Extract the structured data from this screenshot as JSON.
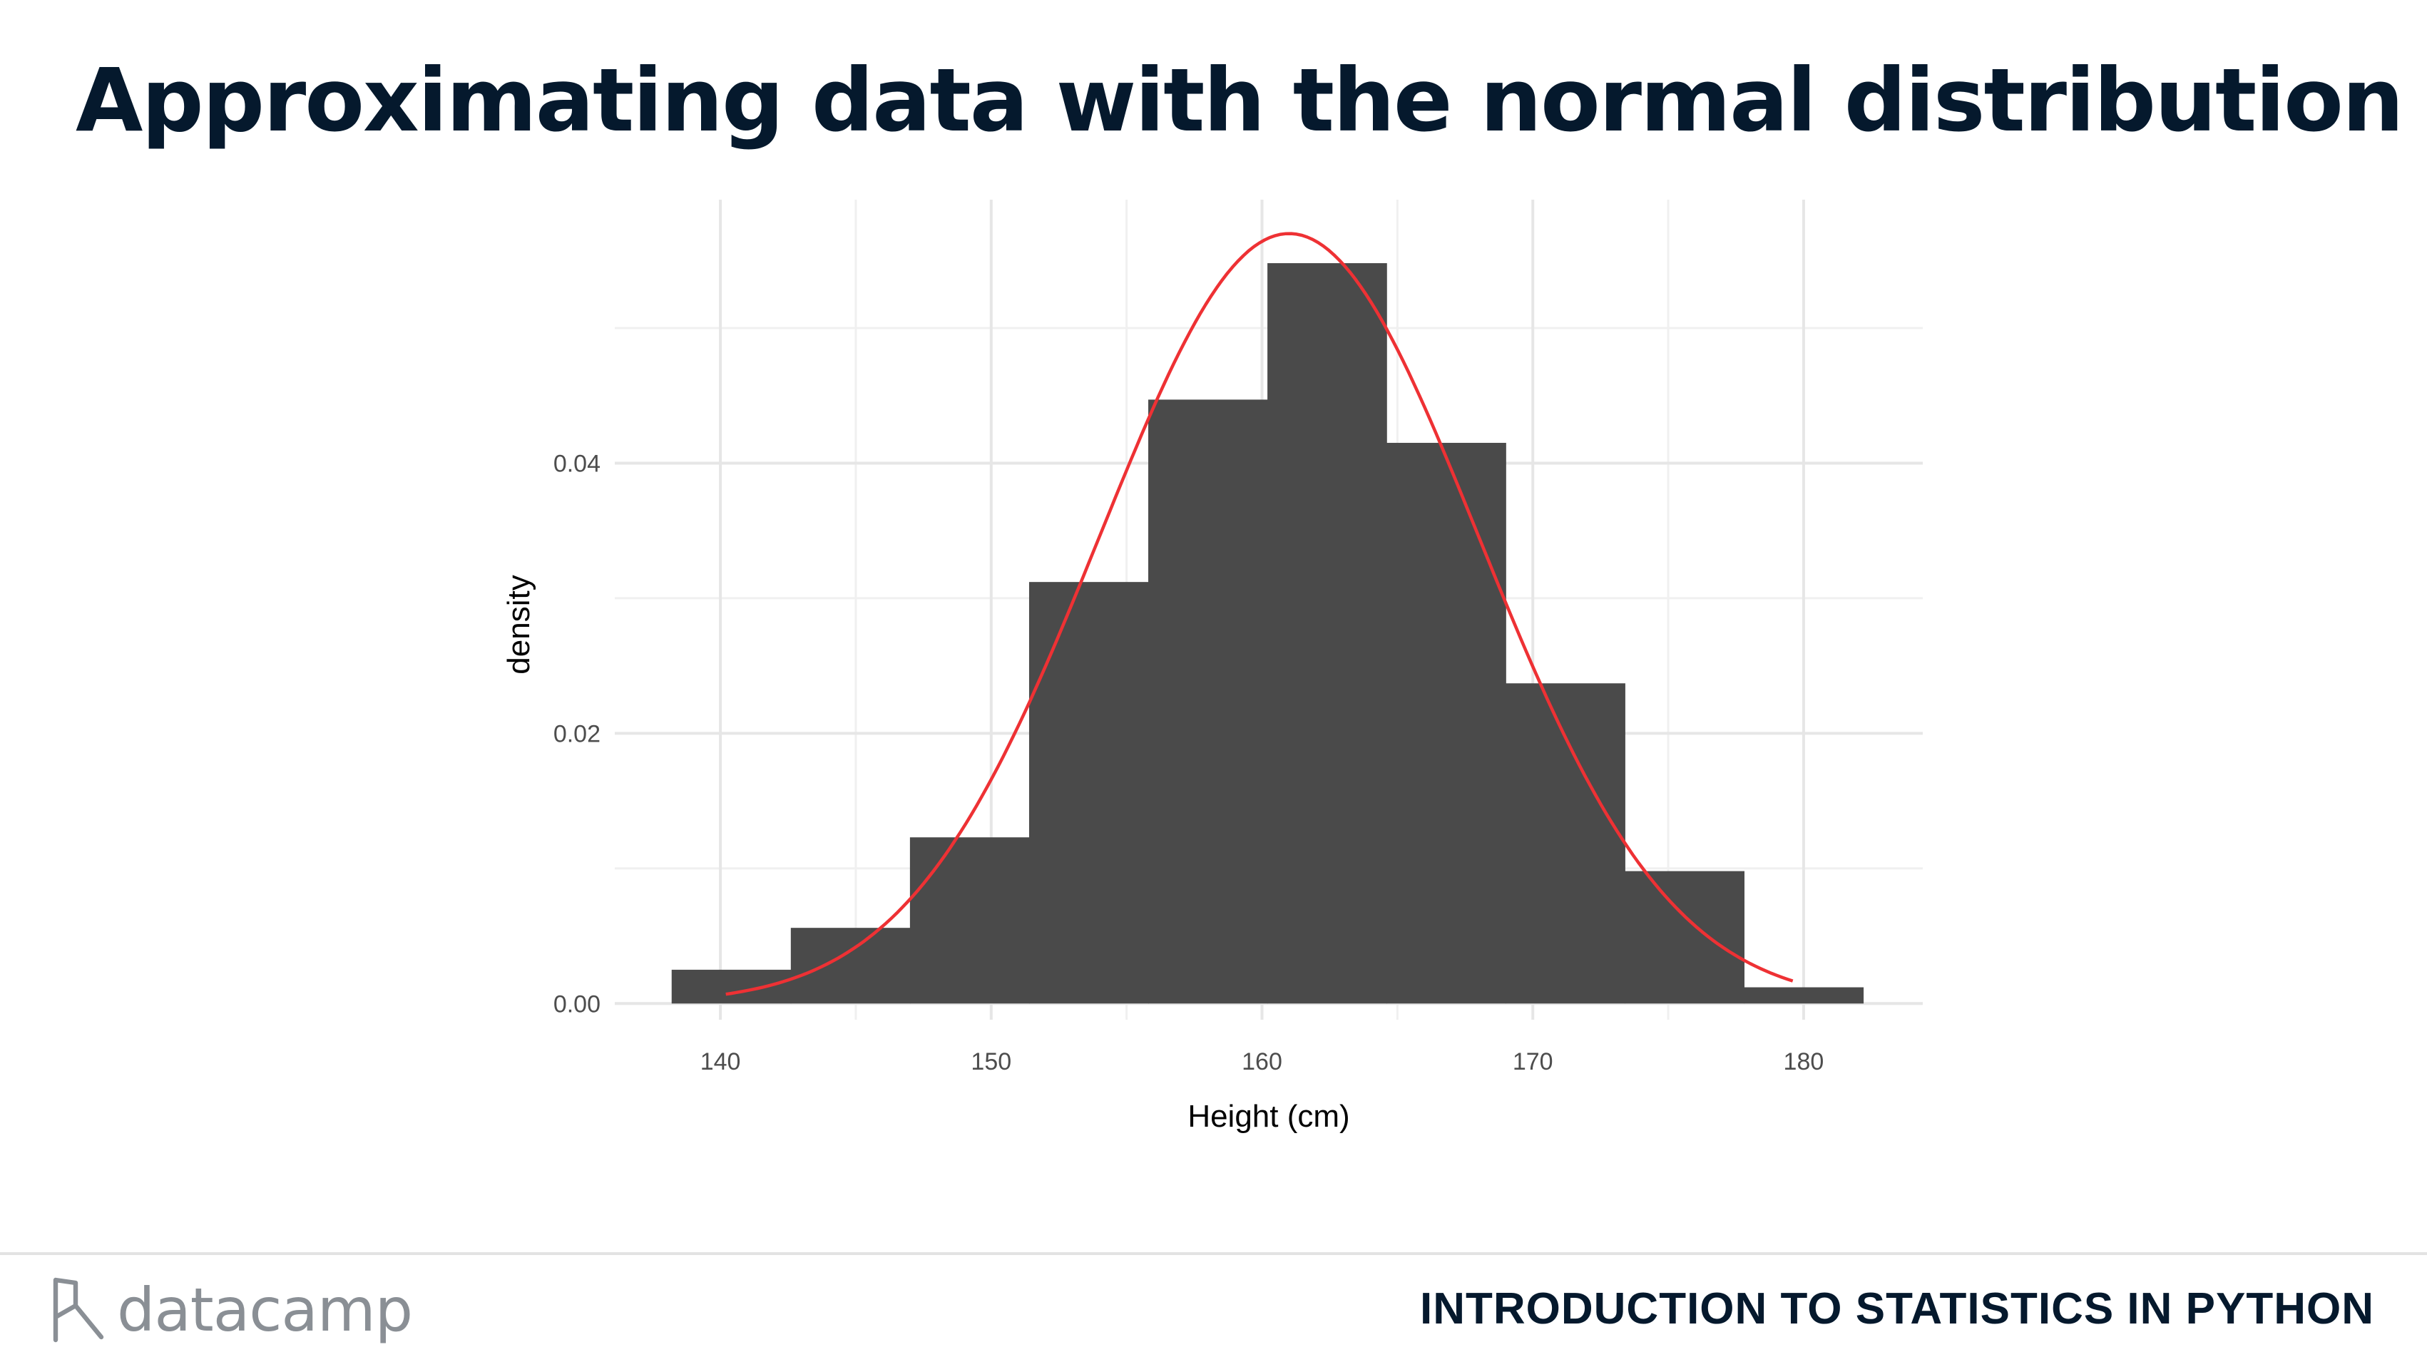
{
  "slide": {
    "title": "Approximating data with the normal distribution"
  },
  "footer": {
    "logo_text": "datacamp",
    "logo_icon": "datacamp-logo-icon",
    "course_title": "INTRODUCTION TO STATISTICS IN PYTHON"
  },
  "chart_data": {
    "type": "bar",
    "subtype": "histogram-with-density-curve",
    "xlabel": "Height (cm)",
    "ylabel": "density",
    "xlim": [
      136.1,
      184.4
    ],
    "ylim": [
      -0.0012,
      0.0595
    ],
    "x_ticks": [
      140,
      150,
      160,
      170,
      180
    ],
    "x_tick_labels": [
      "140",
      "150",
      "160",
      "170",
      "180"
    ],
    "y_ticks": [
      0,
      0.02,
      0.04
    ],
    "y_tick_labels": [
      "0.00",
      "0.02",
      "0.04"
    ],
    "grid": true,
    "bar_color": "#4a4a4a",
    "bins": [
      {
        "x0": 138.2,
        "x1": 142.6,
        "density": 0.0025
      },
      {
        "x0": 142.6,
        "x1": 147.0,
        "density": 0.0056
      },
      {
        "x0": 147.0,
        "x1": 151.4,
        "density": 0.0123
      },
      {
        "x0": 151.4,
        "x1": 155.8,
        "density": 0.0312
      },
      {
        "x0": 155.8,
        "x1": 160.2,
        "density": 0.0447
      },
      {
        "x0": 160.2,
        "x1": 164.6,
        "density": 0.0548
      },
      {
        "x0": 164.6,
        "x1": 169.0,
        "density": 0.0415
      },
      {
        "x0": 169.0,
        "x1": 173.4,
        "density": 0.0237
      },
      {
        "x0": 173.4,
        "x1": 177.8,
        "density": 0.0098
      },
      {
        "x0": 177.8,
        "x1": 182.2,
        "density": 0.0012
      }
    ],
    "density_curve": {
      "color": "#ee3134",
      "x_range": [
        140.2,
        179.6
      ],
      "mean": 161.0,
      "sd": 7.0
    }
  }
}
